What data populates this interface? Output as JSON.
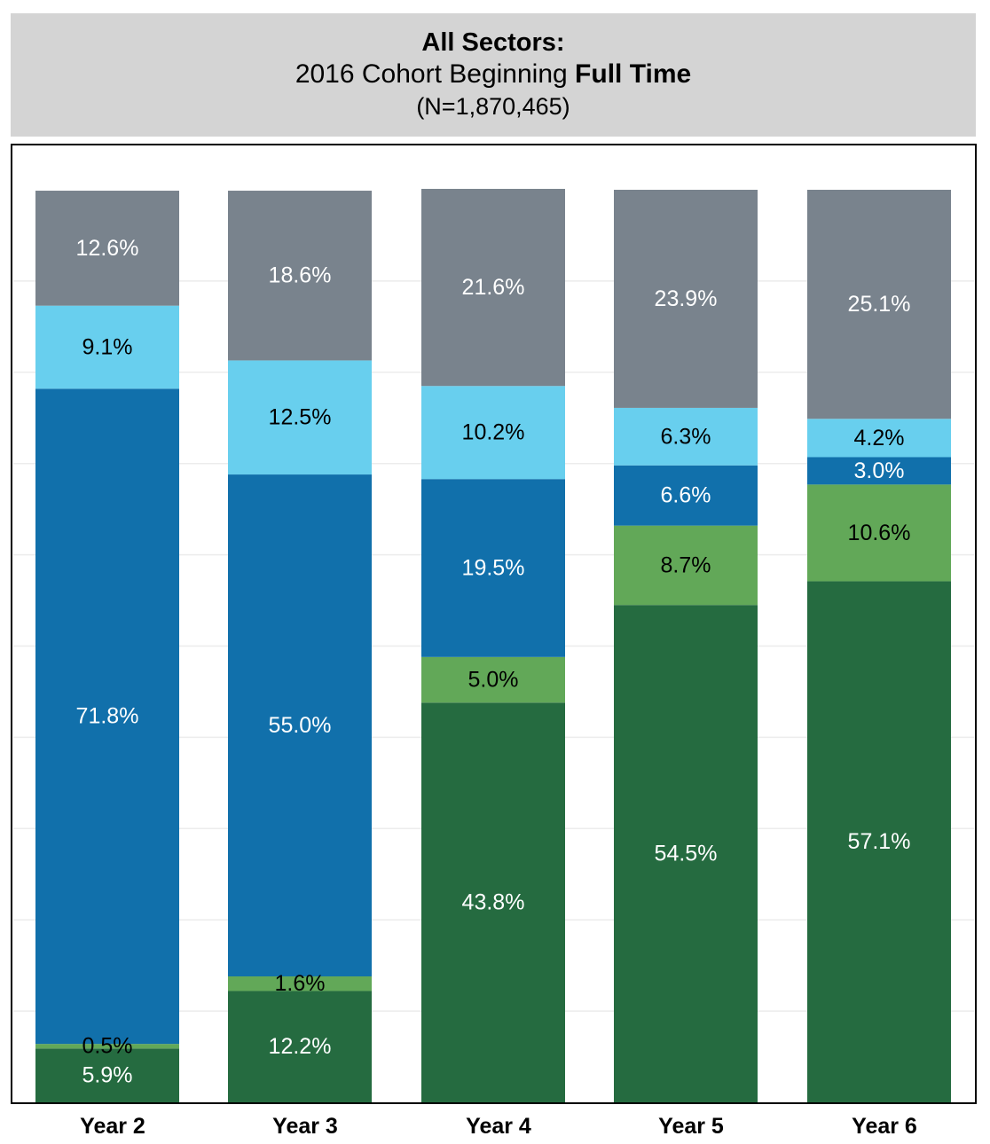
{
  "header": {
    "title": "All Sectors:",
    "subtitle_prefix": "2016 Cohort Beginning ",
    "subtitle_bold": "Full Time",
    "n_label": "(N=1,870,465)"
  },
  "chart_data": {
    "type": "bar",
    "stacked": true,
    "title": "All Sectors:",
    "subtitle": "2016 Cohort Beginning Full Time (N=1,870,465)",
    "xlabel": "",
    "ylabel": "",
    "ylim": [
      0,
      100
    ],
    "grid": true,
    "legend": "none",
    "categories": [
      "Year 2",
      "Year 3",
      "Year 4",
      "Year 5",
      "Year 6"
    ],
    "series": [
      {
        "values": [
          5.9,
          12.2,
          43.8,
          54.5,
          57.1
        ],
        "color": "#256b40",
        "label_color": "#ffffff"
      },
      {
        "values": [
          0.5,
          1.6,
          5.0,
          8.7,
          10.6
        ],
        "color": "#62a858",
        "label_color": "#000000"
      },
      {
        "values": [
          71.8,
          55.0,
          19.5,
          6.6,
          3.0
        ],
        "color": "#1170ab",
        "label_color": "#ffffff"
      },
      {
        "values": [
          9.1,
          12.5,
          10.2,
          6.3,
          4.2
        ],
        "color": "#68cfee",
        "label_color": "#000000"
      },
      {
        "values": [
          12.6,
          18.6,
          21.6,
          23.9,
          25.1
        ],
        "color": "#79838d",
        "label_color": "#ffffff"
      }
    ],
    "data_labels": [
      [
        "5.9%",
        "12.2%",
        "43.8%",
        "54.5%",
        "57.1%"
      ],
      [
        "0.5%",
        "1.6%",
        "5.0%",
        "8.7%",
        "10.6%"
      ],
      [
        "71.8%",
        "55.0%",
        "19.5%",
        "6.6%",
        "3.0%"
      ],
      [
        "9.1%",
        "12.5%",
        "10.2%",
        "6.3%",
        "4.2%"
      ],
      [
        "12.6%",
        "18.6%",
        "21.6%",
        "23.9%",
        "25.1%"
      ]
    ]
  }
}
